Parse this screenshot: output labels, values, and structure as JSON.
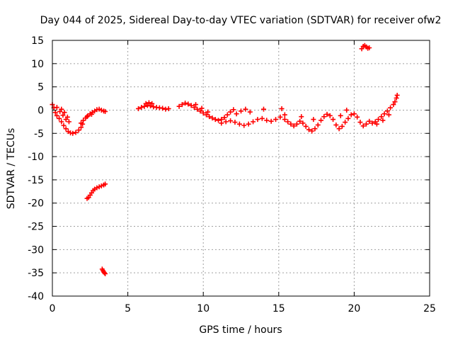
{
  "chart_data": {
    "type": "scatter",
    "title": "Day 044 of 2025, Sidereal Day-to-day VTEC variation (SDTVAR) for receiver ofw2",
    "xlabel": "GPS time / hours",
    "ylabel": "SDTVAR / TECUs",
    "xlim": [
      0,
      25
    ],
    "ylim": [
      -40,
      15
    ],
    "xticks": [
      0,
      5,
      10,
      15,
      20,
      25
    ],
    "yticks": [
      15,
      10,
      5,
      0,
      -5,
      -10,
      -15,
      -20,
      -25,
      -30,
      -35,
      -40
    ],
    "grid": true,
    "marker": "+",
    "color": "#ff0000",
    "segments": [
      {
        "name": "arc-early",
        "points": [
          [
            0.0,
            1.2
          ],
          [
            0.1,
            0.5
          ],
          [
            0.2,
            -0.5
          ],
          [
            0.3,
            -1.2
          ],
          [
            0.45,
            -1.8
          ],
          [
            0.6,
            -2.5
          ],
          [
            0.75,
            -3.3
          ],
          [
            0.9,
            -4.0
          ],
          [
            1.05,
            -4.6
          ],
          [
            1.2,
            -4.9
          ],
          [
            1.35,
            -5.0
          ],
          [
            1.55,
            -4.8
          ],
          [
            1.75,
            -4.3
          ],
          [
            1.9,
            -3.7
          ],
          [
            2.0,
            -3.0
          ],
          [
            0.3,
            0.6
          ],
          [
            0.5,
            -0.3
          ],
          [
            0.7,
            -1.1
          ],
          [
            0.9,
            -2.0
          ],
          [
            1.1,
            -2.5
          ],
          [
            0.6,
            0.2
          ],
          [
            0.8,
            -0.5
          ],
          [
            1.0,
            -1.5
          ]
        ]
      },
      {
        "name": "arc-second",
        "points": [
          [
            1.9,
            -2.8
          ],
          [
            2.05,
            -2.2
          ],
          [
            2.2,
            -1.7
          ],
          [
            2.35,
            -1.2
          ],
          [
            2.5,
            -0.8
          ],
          [
            2.65,
            -0.5
          ],
          [
            2.8,
            -0.2
          ],
          [
            2.95,
            0.1
          ],
          [
            3.1,
            0.2
          ],
          [
            3.25,
            0.0
          ],
          [
            3.4,
            -0.2
          ],
          [
            3.5,
            -0.3
          ],
          [
            2.3,
            -1.4
          ],
          [
            2.6,
            -0.9
          ]
        ]
      },
      {
        "name": "arc-dip",
        "points": [
          [
            2.3,
            -19.0
          ],
          [
            2.4,
            -18.8
          ],
          [
            2.5,
            -18.3
          ],
          [
            2.6,
            -17.8
          ],
          [
            2.7,
            -17.3
          ],
          [
            2.8,
            -17.0
          ],
          [
            2.95,
            -16.7
          ],
          [
            3.1,
            -16.5
          ],
          [
            3.25,
            -16.3
          ],
          [
            3.4,
            -16.1
          ],
          [
            3.5,
            -15.9
          ]
        ]
      },
      {
        "name": "arc-outlier",
        "points": [
          [
            3.3,
            -34.2
          ],
          [
            3.35,
            -34.5
          ],
          [
            3.4,
            -34.8
          ],
          [
            3.45,
            -35.0
          ],
          [
            3.5,
            -35.2
          ]
        ]
      },
      {
        "name": "arc-mid-a",
        "points": [
          [
            5.7,
            0.3
          ],
          [
            5.9,
            0.6
          ],
          [
            6.1,
            0.8
          ],
          [
            6.3,
            1.0
          ],
          [
            6.5,
            0.9
          ],
          [
            6.7,
            0.7
          ],
          [
            6.9,
            0.6
          ],
          [
            7.1,
            0.5
          ],
          [
            7.3,
            0.4
          ],
          [
            7.5,
            0.2
          ],
          [
            7.7,
            0.3
          ],
          [
            6.2,
            1.4
          ],
          [
            6.4,
            1.6
          ],
          [
            6.6,
            1.4
          ]
        ]
      },
      {
        "name": "arc-mid-b",
        "points": [
          [
            8.4,
            0.8
          ],
          [
            8.6,
            1.2
          ],
          [
            8.8,
            1.5
          ],
          [
            9.0,
            1.3
          ],
          [
            9.2,
            1.0
          ],
          [
            9.4,
            0.6
          ],
          [
            9.6,
            0.2
          ],
          [
            9.8,
            -0.2
          ],
          [
            10.0,
            -0.6
          ],
          [
            10.2,
            -1.0
          ],
          [
            10.4,
            -1.4
          ],
          [
            10.6,
            -1.7
          ],
          [
            10.8,
            -2.0
          ],
          [
            11.0,
            -2.2
          ],
          [
            11.2,
            -2.0
          ],
          [
            11.4,
            -1.6
          ],
          [
            11.6,
            -1.0
          ],
          [
            11.8,
            -0.4
          ],
          [
            12.0,
            0.1
          ],
          [
            9.5,
            1.2
          ],
          [
            9.9,
            0.4
          ],
          [
            10.3,
            -0.4
          ]
        ]
      },
      {
        "name": "arc-mid-c",
        "points": [
          [
            11.2,
            -2.8
          ],
          [
            11.5,
            -2.5
          ],
          [
            11.8,
            -2.3
          ],
          [
            12.1,
            -2.6
          ],
          [
            12.4,
            -3.0
          ],
          [
            12.7,
            -3.3
          ],
          [
            13.0,
            -3.0
          ],
          [
            13.3,
            -2.5
          ],
          [
            13.6,
            -2.0
          ],
          [
            13.9,
            -1.8
          ],
          [
            14.2,
            -2.2
          ],
          [
            14.5,
            -2.4
          ],
          [
            14.8,
            -2.0
          ],
          [
            15.1,
            -1.5
          ],
          [
            15.4,
            -1.0
          ],
          [
            12.2,
            -0.8
          ],
          [
            12.5,
            -0.2
          ],
          [
            12.8,
            0.2
          ],
          [
            13.1,
            -0.4
          ],
          [
            14.0,
            0.2
          ],
          [
            15.2,
            0.3
          ]
        ]
      },
      {
        "name": "arc-late-a",
        "points": [
          [
            15.4,
            -2.0
          ],
          [
            15.6,
            -2.5
          ],
          [
            15.8,
            -3.0
          ],
          [
            16.0,
            -3.4
          ],
          [
            16.2,
            -3.0
          ],
          [
            16.4,
            -2.4
          ],
          [
            16.6,
            -2.8
          ],
          [
            16.8,
            -3.5
          ],
          [
            17.0,
            -4.2
          ],
          [
            17.2,
            -4.5
          ],
          [
            17.4,
            -4.0
          ],
          [
            17.6,
            -3.2
          ],
          [
            17.8,
            -2.2
          ],
          [
            18.0,
            -1.4
          ],
          [
            18.2,
            -0.9
          ],
          [
            18.4,
            -1.2
          ],
          [
            18.6,
            -2.0
          ],
          [
            18.8,
            -3.2
          ],
          [
            19.0,
            -4.0
          ],
          [
            19.2,
            -3.5
          ],
          [
            19.4,
            -2.6
          ],
          [
            19.6,
            -1.8
          ],
          [
            19.8,
            -1.0
          ],
          [
            20.0,
            -0.8
          ],
          [
            20.2,
            -1.5
          ],
          [
            20.4,
            -2.6
          ],
          [
            20.6,
            -3.4
          ],
          [
            20.8,
            -3.0
          ],
          [
            21.0,
            -2.4
          ],
          [
            16.5,
            -1.4
          ],
          [
            17.3,
            -2.0
          ],
          [
            19.1,
            -1.2
          ],
          [
            19.5,
            0.0
          ]
        ]
      },
      {
        "name": "arc-late-b",
        "points": [
          [
            21.2,
            -2.8
          ],
          [
            21.4,
            -2.5
          ],
          [
            21.6,
            -2.0
          ],
          [
            21.8,
            -1.4
          ],
          [
            22.0,
            -0.8
          ],
          [
            22.2,
            -0.2
          ],
          [
            22.4,
            0.5
          ],
          [
            22.6,
            1.2
          ],
          [
            22.7,
            1.8
          ],
          [
            22.8,
            2.6
          ],
          [
            22.85,
            3.2
          ],
          [
            21.5,
            -3.0
          ],
          [
            21.9,
            -2.2
          ],
          [
            22.3,
            -1.0
          ]
        ]
      },
      {
        "name": "arc-high",
        "points": [
          [
            20.5,
            13.2
          ],
          [
            20.6,
            13.7
          ],
          [
            20.7,
            13.9
          ],
          [
            20.8,
            13.6
          ],
          [
            20.9,
            13.3
          ],
          [
            21.0,
            13.4
          ]
        ]
      }
    ]
  }
}
